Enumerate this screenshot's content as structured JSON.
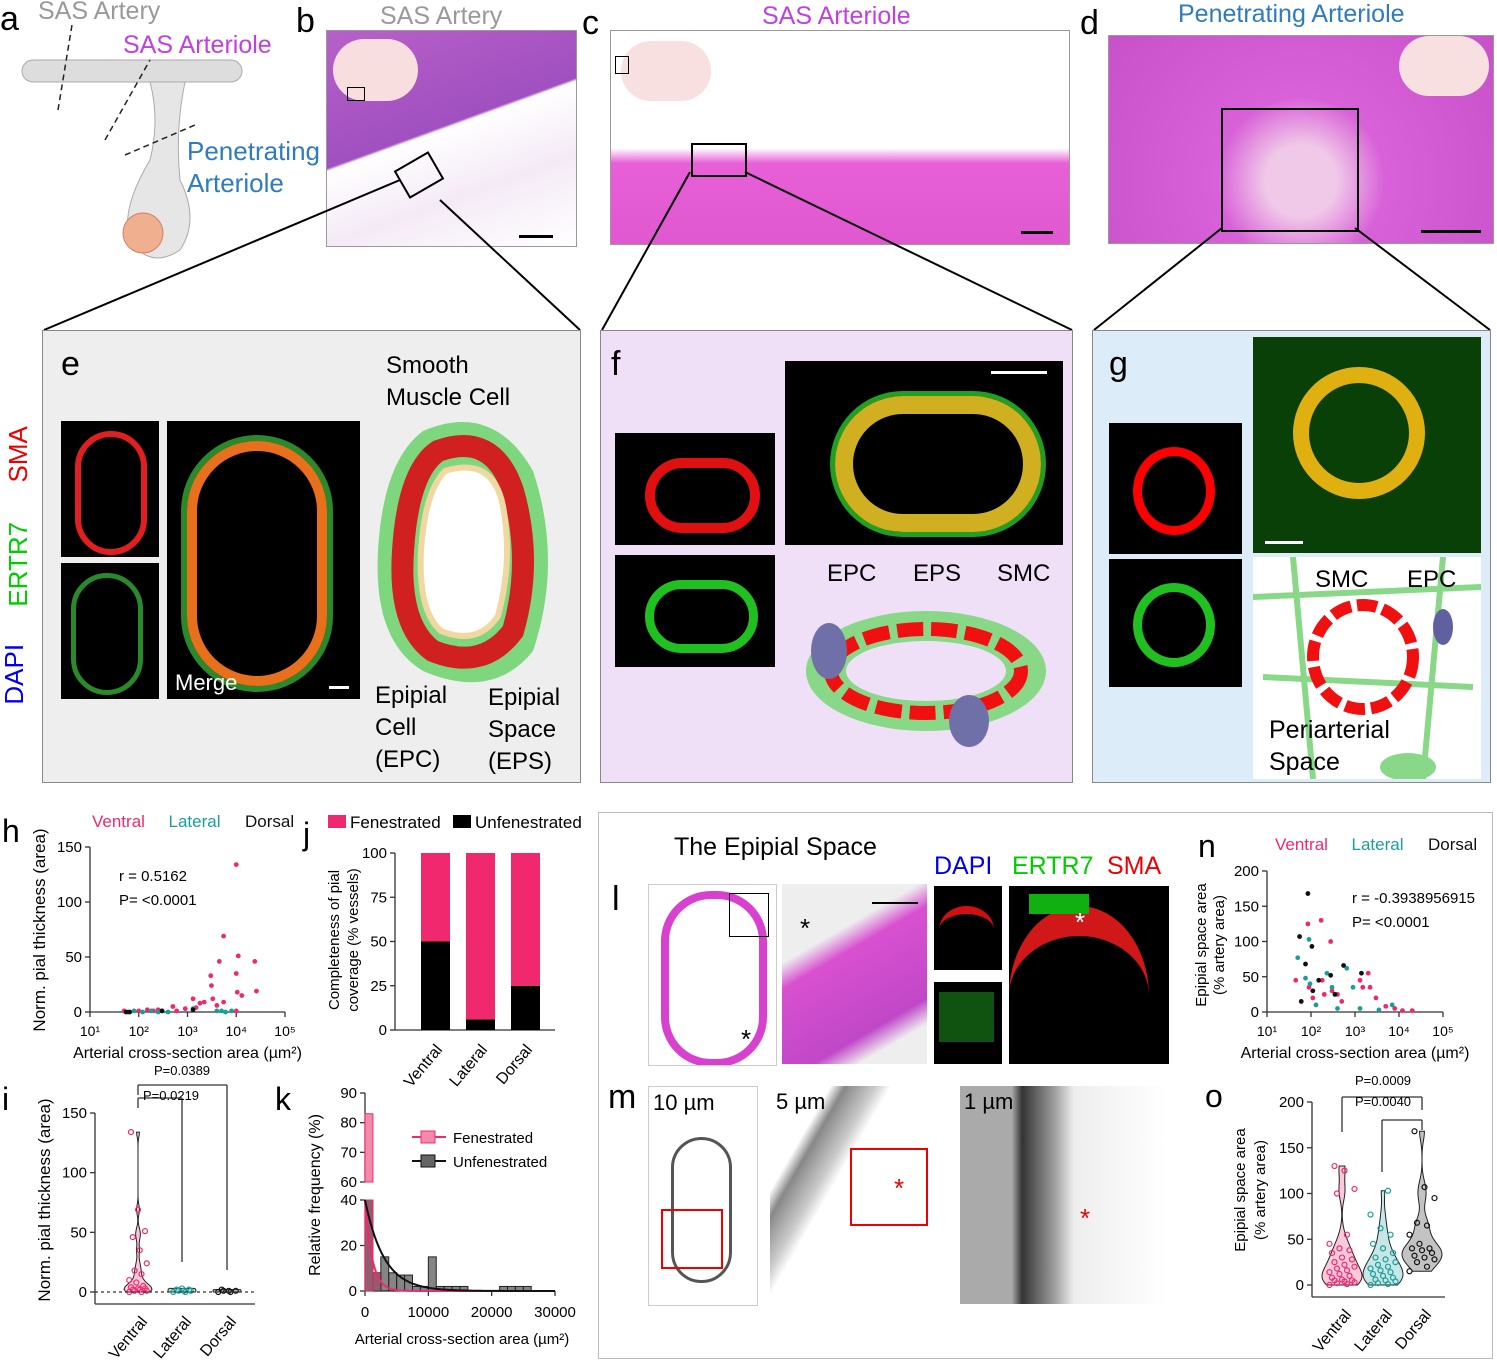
{
  "panels": {
    "a": {
      "letter": "a",
      "label_artery": "SAS Artery",
      "label_arteriole": "SAS Arteriole",
      "label_pen1": "Penetrating",
      "label_pen2": "Arteriole"
    },
    "b": {
      "letter": "b",
      "title": "SAS Artery"
    },
    "c": {
      "letter": "c",
      "title": "SAS Arteriole"
    },
    "d": {
      "letter": "d",
      "title": "Penetrating Arteriole"
    },
    "e": {
      "letter": "e",
      "stain_sma": "SMA",
      "stain_ertr7": "ERTR7",
      "stain_dapi": "DAPI",
      "merge": "Merge",
      "smc1": "Smooth",
      "smc2": "Muscle Cell",
      "epc1": "Epipial",
      "epc2": "Cell",
      "epc3": "(EPC)",
      "eps1": "Epipial",
      "eps2": "Space",
      "eps3": "(EPS)"
    },
    "f": {
      "letter": "f",
      "epc": "EPC",
      "eps": "EPS",
      "smc": "SMC"
    },
    "g": {
      "letter": "g",
      "smc": "SMC",
      "epc": "EPC",
      "peri1": "Periarterial",
      "peri2": "Space"
    },
    "l": {
      "letter": "l",
      "title": "The Epipial Space",
      "dapi": "DAPI",
      "ertr7": "ERTR7",
      "sma": "SMA",
      "asterisk": "*"
    },
    "m": {
      "letter": "m",
      "scale1": "10 µm",
      "scale2": "5 µm",
      "scale3": "1 µm",
      "asterisk": "*"
    }
  },
  "colors": {
    "ventral": "#f0286e",
    "lateral": "#1a9e9a",
    "dorsal": "#111111",
    "sas_arteriole": "#c040e0",
    "penetrating": "#2e7bbf",
    "he_pink": "#d84fcf"
  },
  "chart_data": [
    {
      "id": "h",
      "letter": "h",
      "type": "scatter",
      "xscale": "log",
      "xlim": [
        10,
        100000
      ],
      "ylim": [
        0,
        150
      ],
      "xticks": [
        "10¹",
        "10²",
        "10³",
        "10⁴",
        "10⁵"
      ],
      "yticks": [
        "0",
        "50",
        "100",
        "150"
      ],
      "xlabel": "Arterial cross-section area (µm²)",
      "ylabel": "Norm. pial thickness (area)",
      "annotation_r": "r = 0.5162",
      "annotation_p": "P= <0.0001",
      "series": [
        {
          "name": "Ventral",
          "points": [
            [
              50,
              1
            ],
            [
              100,
              1
            ],
            [
              150,
              2
            ],
            [
              200,
              1
            ],
            [
              250,
              2
            ],
            [
              500,
              5
            ],
            [
              600,
              1
            ],
            [
              900,
              3
            ],
            [
              1300,
              12
            ],
            [
              1500,
              4
            ],
            [
              1800,
              8
            ],
            [
              2200,
              9
            ],
            [
              3000,
              33
            ],
            [
              3100,
              24
            ],
            [
              3300,
              12
            ],
            [
              4000,
              6
            ],
            [
              4500,
              46
            ],
            [
              5500,
              69
            ],
            [
              5500,
              9
            ],
            [
              10000,
              35
            ],
            [
              10500,
              18
            ],
            [
              11000,
              51
            ],
            [
              13000,
              15
            ],
            [
              24000,
              46
            ],
            [
              26000,
              19
            ],
            [
              10000,
              134
            ],
            [
              10000,
              1
            ]
          ]
        },
        {
          "name": "Lateral",
          "points": [
            [
              60,
              0
            ],
            [
              80,
              1
            ],
            [
              120,
              0
            ],
            [
              180,
              1
            ],
            [
              250,
              0
            ],
            [
              300,
              1
            ],
            [
              400,
              0
            ],
            [
              1300,
              3
            ],
            [
              4000,
              1
            ],
            [
              5000,
              1
            ],
            [
              6000,
              0
            ],
            [
              8000,
              1
            ]
          ]
        },
        {
          "name": "Dorsal",
          "points": [
            [
              55,
              0
            ],
            [
              65,
              0
            ],
            [
              300,
              1
            ],
            [
              1300,
              2
            ]
          ]
        }
      ]
    },
    {
      "id": "j",
      "letter": "j",
      "type": "bar",
      "stacked": true,
      "categories": [
        "Ventral",
        "Lateral",
        "Dorsal"
      ],
      "ylim": [
        0,
        100
      ],
      "yticks": [
        "0",
        "25",
        "50",
        "75",
        "100"
      ],
      "ylabel1": "Completeness of pial",
      "ylabel2": "coverage (% vessels)",
      "series": [
        {
          "name": "Unfenestrated",
          "values": [
            50,
            6,
            25
          ]
        },
        {
          "name": "Fenestrated",
          "values": [
            50,
            94,
            75
          ]
        }
      ]
    },
    {
      "id": "i",
      "letter": "i",
      "type": "violin",
      "categories": [
        "Ventral",
        "Lateral",
        "Dorsal"
      ],
      "ylim": [
        0,
        150
      ],
      "yticks": [
        "0",
        "50",
        "100",
        "150"
      ],
      "ylabel": "Norm. pial thickness (area)",
      "p1": "P=0.0219",
      "p2": "P=0.0389",
      "values": [
        [
          0,
          0,
          1,
          1,
          2,
          2,
          3,
          3,
          4,
          5,
          8,
          10,
          15,
          18,
          24,
          35,
          46,
          51,
          69,
          134
        ],
        [
          0,
          0,
          1,
          1,
          1,
          2,
          2,
          3
        ],
        [
          0,
          0,
          1,
          1,
          1,
          2
        ]
      ]
    },
    {
      "id": "k",
      "letter": "k",
      "type": "histogram",
      "xlim": [
        0,
        30000
      ],
      "xticks": [
        "0",
        "10000",
        "20000",
        "30000"
      ],
      "yticks_low": [
        "0",
        "20",
        "40"
      ],
      "yticks_high": [
        "60",
        "70",
        "80",
        "90"
      ],
      "xlabel": "Arterial cross-section area (µm²)",
      "ylabel": "Relative frequency (%)",
      "bin_width": 1250,
      "series": [
        {
          "name": "Fenestrated",
          "values": [
            83,
            8,
            0,
            0,
            0,
            0
          ]
        },
        {
          "name": "Unfenestrated",
          "values": [
            40,
            8,
            15,
            8,
            7,
            7,
            2,
            2,
            15,
            2,
            2,
            2,
            2,
            0,
            0,
            0,
            0,
            2,
            2,
            2,
            2
          ]
        }
      ]
    },
    {
      "id": "n",
      "letter": "n",
      "type": "scatter",
      "xscale": "log",
      "xlim": [
        10,
        100000
      ],
      "ylim": [
        0,
        200
      ],
      "xticks": [
        "10¹",
        "10²",
        "10³",
        "10⁴",
        "10⁵"
      ],
      "yticks": [
        "0",
        "50",
        "100",
        "150",
        "200"
      ],
      "xlabel": "Arterial cross-section area (µm²)",
      "ylabel1": "Epipial space area",
      "ylabel2": "(% artery area)",
      "annotation_r": "r = -0.3938956915",
      "annotation_p": "P= <0.0001",
      "series": [
        {
          "name": "Ventral",
          "points": [
            [
              45,
              45
            ],
            [
              85,
              125
            ],
            [
              90,
              35
            ],
            [
              110,
              20
            ],
            [
              170,
              130
            ],
            [
              180,
              45
            ],
            [
              200,
              25
            ],
            [
              280,
              100
            ],
            [
              300,
              30
            ],
            [
              400,
              25
            ],
            [
              500,
              15
            ],
            [
              1300,
              45
            ],
            [
              1500,
              35
            ],
            [
              2000,
              55
            ],
            [
              2200,
              35
            ],
            [
              3000,
              20
            ],
            [
              5000,
              8
            ],
            [
              8000,
              5
            ],
            [
              12000,
              2
            ],
            [
              20000,
              2
            ]
          ]
        },
        {
          "name": "Lateral",
          "points": [
            [
              50,
              77
            ],
            [
              75,
              48
            ],
            [
              90,
              103
            ],
            [
              95,
              40
            ],
            [
              130,
              10
            ],
            [
              230,
              55
            ],
            [
              300,
              35
            ],
            [
              400,
              5
            ],
            [
              650,
              62
            ],
            [
              900,
              35
            ],
            [
              1300,
              5
            ],
            [
              3500,
              3
            ],
            [
              7000,
              10
            ]
          ]
        },
        {
          "name": "Dorsal",
          "points": [
            [
              55,
              107
            ],
            [
              85,
              168
            ],
            [
              75,
              68
            ],
            [
              60,
              15
            ],
            [
              105,
              93
            ],
            [
              150,
              45
            ],
            [
              280,
              52
            ],
            [
              350,
              25
            ],
            [
              550,
              66
            ],
            [
              1400,
              55
            ],
            [
              110,
              30
            ]
          ]
        }
      ]
    },
    {
      "id": "o",
      "letter": "o",
      "type": "violin",
      "categories": [
        "Ventral",
        "Lateral",
        "Dorsal"
      ],
      "ylim": [
        0,
        200
      ],
      "yticks": [
        "0",
        "50",
        "100",
        "150",
        "200"
      ],
      "ylabel1": "Epipial space area",
      "ylabel2": "(% artery area)",
      "p1": "P=0.0040",
      "p2": "P=0.0009",
      "values": [
        [
          0,
          1,
          2,
          3,
          4,
          5,
          5,
          6,
          8,
          10,
          12,
          14,
          16,
          18,
          20,
          22,
          25,
          28,
          30,
          35,
          38,
          40,
          45,
          55,
          100,
          105,
          125,
          130
        ],
        [
          0,
          1,
          2,
          4,
          5,
          6,
          8,
          10,
          12,
          14,
          16,
          18,
          20,
          22,
          25,
          28,
          30,
          35,
          40,
          45,
          55,
          62,
          77,
          103
        ],
        [
          15,
          20,
          25,
          28,
          30,
          32,
          35,
          38,
          40,
          40,
          45,
          55,
          65,
          68,
          95,
          107,
          168
        ]
      ]
    }
  ]
}
